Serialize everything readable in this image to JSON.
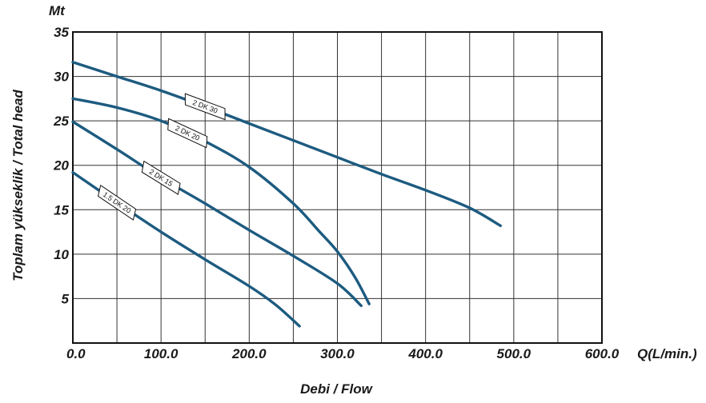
{
  "chart_data": {
    "type": "line",
    "title": "",
    "xlabel": "Debi / Flow",
    "ylabel": "Toplam yükseklik / Total head",
    "y_unit_label": "Mt",
    "x_unit_label": "Q(L/min.)",
    "xlim": [
      0,
      600
    ],
    "ylim": [
      0,
      35
    ],
    "x_ticks": [
      "0.0",
      "100.0",
      "200.0",
      "300.0",
      "400.0",
      "500.0",
      "600.0"
    ],
    "y_ticks": [
      "35",
      "30",
      "25",
      "20",
      "15",
      "10",
      "5"
    ],
    "y_tick_values": [
      35,
      30,
      25,
      20,
      15,
      10,
      5
    ],
    "x_tick_values": [
      0,
      100,
      200,
      300,
      400,
      500,
      600
    ],
    "grid": true,
    "color": "#1d5b80",
    "series": [
      {
        "name": "2 DK 30",
        "label_at": 150,
        "points": [
          [
            0,
            31.6
          ],
          [
            50,
            30.0
          ],
          [
            100,
            28.4
          ],
          [
            150,
            26.6
          ],
          [
            200,
            24.7
          ],
          [
            250,
            22.8
          ],
          [
            300,
            20.9
          ],
          [
            350,
            19.0
          ],
          [
            400,
            17.2
          ],
          [
            450,
            15.2
          ],
          [
            485,
            13.2
          ]
        ]
      },
      {
        "name": "2 DK 20",
        "label_at": 130,
        "points": [
          [
            0,
            27.5
          ],
          [
            50,
            26.5
          ],
          [
            100,
            25.0
          ],
          [
            150,
            22.7
          ],
          [
            200,
            19.8
          ],
          [
            250,
            15.7
          ],
          [
            280,
            12.5
          ],
          [
            300,
            10.3
          ],
          [
            320,
            7.4
          ],
          [
            336,
            4.4
          ]
        ]
      },
      {
        "name": "2 DK 15",
        "label_at": 100,
        "points": [
          [
            0,
            24.9
          ],
          [
            50,
            21.8
          ],
          [
            100,
            18.6
          ],
          [
            150,
            15.7
          ],
          [
            200,
            12.7
          ],
          [
            250,
            9.8
          ],
          [
            300,
            6.7
          ],
          [
            327,
            4.2
          ]
        ]
      },
      {
        "name": "1.5 DK 20",
        "label_at": 50,
        "points": [
          [
            0,
            19.2
          ],
          [
            50,
            15.8
          ],
          [
            100,
            12.5
          ],
          [
            150,
            9.4
          ],
          [
            200,
            6.4
          ],
          [
            230,
            4.3
          ],
          [
            257,
            1.9
          ]
        ]
      }
    ]
  }
}
